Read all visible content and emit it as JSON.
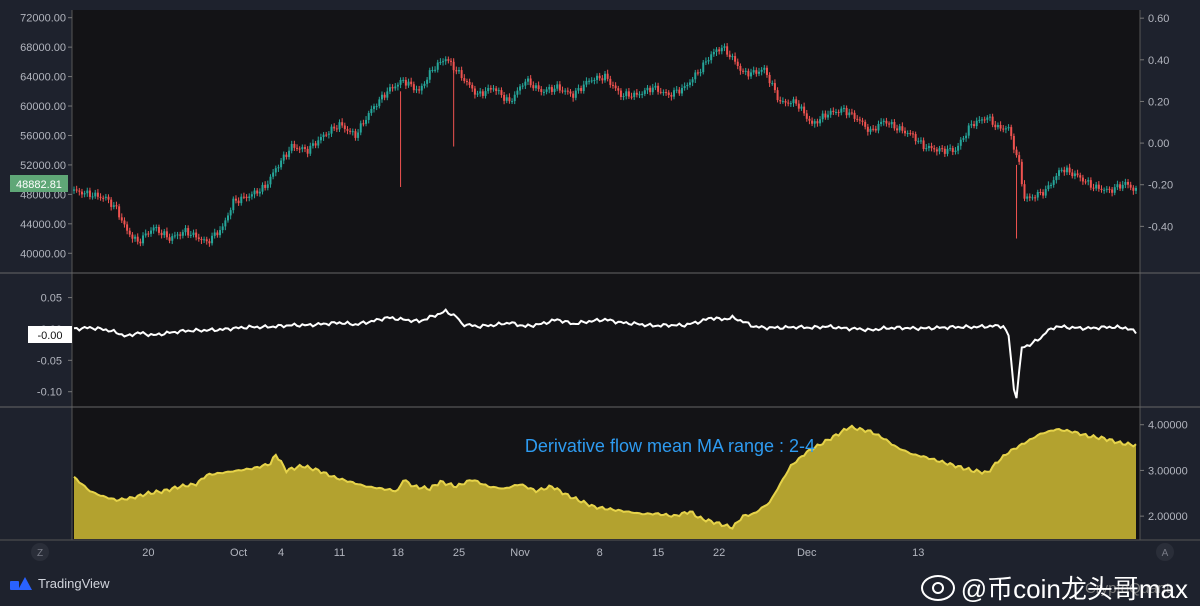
{
  "chart_data": [
    {
      "type": "candlestick",
      "series_name": "",
      "y_axis_left": {
        "ticks": [
          "72000.00",
          "68000.00",
          "64000.00",
          "60000.00",
          "56000.00",
          "52000.00",
          "48000.00",
          "44000.00",
          "40000.00"
        ],
        "range": [
          38000,
          72500
        ]
      },
      "y_axis_right": {
        "ticks": [
          "0.60",
          "0.40",
          "0.20",
          "0.00",
          "-0.20",
          "-0.40"
        ],
        "range": [
          -0.6,
          0.62
        ]
      },
      "price_badge": "48882.81",
      "anchors": [
        [
          0,
          48500
        ],
        [
          6,
          48000
        ],
        [
          12,
          47500
        ],
        [
          16,
          46000
        ],
        [
          20,
          43000
        ],
        [
          24,
          41500
        ],
        [
          30,
          43500
        ],
        [
          36,
          42000
        ],
        [
          42,
          43000
        ],
        [
          50,
          41500
        ],
        [
          56,
          43500
        ],
        [
          60,
          47000
        ],
        [
          66,
          47800
        ],
        [
          72,
          49000
        ],
        [
          76,
          51500
        ],
        [
          82,
          54500
        ],
        [
          88,
          54000
        ],
        [
          94,
          56000
        ],
        [
          100,
          57500
        ],
        [
          106,
          56000
        ],
        [
          112,
          59500
        ],
        [
          118,
          62000
        ],
        [
          124,
          63500
        ],
        [
          130,
          62000
        ],
        [
          135,
          65000
        ],
        [
          140,
          66500
        ],
        [
          146,
          64000
        ],
        [
          152,
          61500
        ],
        [
          158,
          62500
        ],
        [
          164,
          60500
        ],
        [
          170,
          63500
        ],
        [
          176,
          62000
        ],
        [
          182,
          62500
        ],
        [
          188,
          61500
        ],
        [
          194,
          63500
        ],
        [
          200,
          64000
        ],
        [
          206,
          61500
        ],
        [
          212,
          61500
        ],
        [
          218,
          62500
        ],
        [
          224,
          61500
        ],
        [
          230,
          62500
        ],
        [
          236,
          65000
        ],
        [
          240,
          67000
        ],
        [
          244,
          68000
        ],
        [
          248,
          66500
        ],
        [
          252,
          64500
        ],
        [
          256,
          64500
        ],
        [
          260,
          65000
        ],
        [
          266,
          60500
        ],
        [
          272,
          60500
        ],
        [
          278,
          57500
        ],
        [
          284,
          59000
        ],
        [
          290,
          59500
        ],
        [
          296,
          58000
        ],
        [
          300,
          56500
        ],
        [
          305,
          58000
        ],
        [
          310,
          57000
        ],
        [
          316,
          56000
        ],
        [
          320,
          54500
        ],
        [
          326,
          54000
        ],
        [
          332,
          54000
        ],
        [
          338,
          57500
        ],
        [
          344,
          58500
        ],
        [
          348,
          57000
        ],
        [
          352,
          57000
        ],
        [
          356,
          52000
        ],
        [
          358,
          47500
        ],
        [
          360,
          47500
        ],
        [
          366,
          48500
        ],
        [
          372,
          51500
        ],
        [
          378,
          50500
        ],
        [
          384,
          49000
        ],
        [
          390,
          48500
        ],
        [
          396,
          49500
        ],
        [
          400,
          48500
        ]
      ]
    },
    {
      "type": "line",
      "series_name": "",
      "y_axis_left": {
        "ticks": [
          "0.05",
          "0.00",
          "-0.05",
          "-0.10"
        ],
        "range": [
          -0.118,
          0.078
        ]
      },
      "value_badge": "-0.00",
      "anchors": [
        [
          0,
          0.0
        ],
        [
          6,
          0.002
        ],
        [
          10,
          0.0
        ],
        [
          14,
          -0.003
        ],
        [
          20,
          -0.012
        ],
        [
          24,
          -0.006
        ],
        [
          30,
          -0.01
        ],
        [
          36,
          -0.006
        ],
        [
          42,
          -0.003
        ],
        [
          50,
          -0.002
        ],
        [
          56,
          -0.001
        ],
        [
          60,
          0.001
        ],
        [
          66,
          0.003
        ],
        [
          72,
          0.003
        ],
        [
          76,
          0.004
        ],
        [
          82,
          0.006
        ],
        [
          88,
          0.006
        ],
        [
          94,
          0.008
        ],
        [
          100,
          0.01
        ],
        [
          106,
          0.007
        ],
        [
          112,
          0.012
        ],
        [
          118,
          0.018
        ],
        [
          124,
          0.015
        ],
        [
          130,
          0.012
        ],
        [
          135,
          0.02
        ],
        [
          140,
          0.028
        ],
        [
          144,
          0.02
        ],
        [
          146,
          0.008
        ],
        [
          152,
          0.004
        ],
        [
          158,
          0.006
        ],
        [
          164,
          0.01
        ],
        [
          170,
          0.004
        ],
        [
          176,
          0.008
        ],
        [
          182,
          0.015
        ],
        [
          188,
          0.008
        ],
        [
          194,
          0.012
        ],
        [
          200,
          0.015
        ],
        [
          206,
          0.01
        ],
        [
          212,
          0.008
        ],
        [
          218,
          0.005
        ],
        [
          224,
          0.006
        ],
        [
          230,
          0.006
        ],
        [
          236,
          0.012
        ],
        [
          240,
          0.018
        ],
        [
          244,
          0.015
        ],
        [
          248,
          0.018
        ],
        [
          252,
          0.012
        ],
        [
          256,
          0.004
        ],
        [
          260,
          0.002
        ],
        [
          266,
          0.002
        ],
        [
          272,
          0.003
        ],
        [
          278,
          0.002
        ],
        [
          284,
          0.004
        ],
        [
          290,
          0.001
        ],
        [
          296,
          0.0
        ],
        [
          300,
          -0.002
        ],
        [
          305,
          0.001
        ],
        [
          310,
          0.002
        ],
        [
          316,
          0.001
        ],
        [
          320,
          0.001
        ],
        [
          326,
          0.002
        ],
        [
          332,
          0.003
        ],
        [
          338,
          0.003
        ],
        [
          344,
          0.004
        ],
        [
          348,
          0.005
        ],
        [
          350,
          0.004
        ],
        [
          352,
          -0.01
        ],
        [
          354,
          -0.095
        ],
        [
          355,
          -0.108
        ],
        [
          357,
          -0.03
        ],
        [
          360,
          -0.025
        ],
        [
          364,
          -0.015
        ],
        [
          366,
          -0.005
        ],
        [
          370,
          0.004
        ],
        [
          376,
          0.002
        ],
        [
          382,
          0.001
        ],
        [
          390,
          0.003
        ],
        [
          396,
          0.002
        ],
        [
          400,
          -0.005
        ]
      ]
    },
    {
      "type": "area",
      "series_name": "",
      "annotation": "Derivative flow mean MA range : 2-4",
      "y_axis_right": {
        "ticks": [
          "4.00000",
          "3.00000",
          "2.00000"
        ],
        "range": [
          1.5,
          4.3
        ]
      },
      "anchors": [
        [
          0,
          2.85
        ],
        [
          6,
          2.55
        ],
        [
          10,
          2.45
        ],
        [
          16,
          2.35
        ],
        [
          22,
          2.4
        ],
        [
          28,
          2.5
        ],
        [
          34,
          2.55
        ],
        [
          40,
          2.65
        ],
        [
          46,
          2.7
        ],
        [
          50,
          2.9
        ],
        [
          56,
          2.95
        ],
        [
          62,
          3.0
        ],
        [
          68,
          3.05
        ],
        [
          74,
          3.15
        ],
        [
          76,
          3.35
        ],
        [
          80,
          3.0
        ],
        [
          86,
          3.1
        ],
        [
          92,
          3.0
        ],
        [
          98,
          2.85
        ],
        [
          104,
          2.75
        ],
        [
          110,
          2.65
        ],
        [
          116,
          2.6
        ],
        [
          122,
          2.55
        ],
        [
          124,
          2.8
        ],
        [
          128,
          2.65
        ],
        [
          134,
          2.6
        ],
        [
          138,
          2.75
        ],
        [
          144,
          2.65
        ],
        [
          150,
          2.8
        ],
        [
          156,
          2.65
        ],
        [
          162,
          2.6
        ],
        [
          168,
          2.7
        ],
        [
          174,
          2.55
        ],
        [
          180,
          2.65
        ],
        [
          186,
          2.45
        ],
        [
          190,
          2.35
        ],
        [
          196,
          2.2
        ],
        [
          202,
          2.15
        ],
        [
          208,
          2.1
        ],
        [
          214,
          2.05
        ],
        [
          220,
          2.05
        ],
        [
          226,
          2.0
        ],
        [
          232,
          2.1
        ],
        [
          236,
          1.95
        ],
        [
          242,
          1.85
        ],
        [
          248,
          1.75
        ],
        [
          252,
          2.0
        ],
        [
          256,
          2.05
        ],
        [
          262,
          2.3
        ],
        [
          266,
          2.7
        ],
        [
          270,
          3.1
        ],
        [
          276,
          3.4
        ],
        [
          282,
          3.6
        ],
        [
          288,
          3.8
        ],
        [
          292,
          3.95
        ],
        [
          296,
          3.9
        ],
        [
          300,
          3.85
        ],
        [
          305,
          3.7
        ],
        [
          310,
          3.5
        ],
        [
          316,
          3.35
        ],
        [
          320,
          3.3
        ],
        [
          326,
          3.2
        ],
        [
          332,
          3.1
        ],
        [
          338,
          3.0
        ],
        [
          344,
          2.95
        ],
        [
          348,
          3.2
        ],
        [
          352,
          3.4
        ],
        [
          358,
          3.6
        ],
        [
          364,
          3.8
        ],
        [
          370,
          3.9
        ],
        [
          376,
          3.85
        ],
        [
          382,
          3.75
        ],
        [
          388,
          3.7
        ],
        [
          394,
          3.6
        ],
        [
          400,
          3.55
        ]
      ]
    }
  ],
  "x_axis": {
    "labels": [
      {
        "text": "20",
        "x": 28
      },
      {
        "text": "Oct",
        "x": 62
      },
      {
        "text": "4",
        "x": 78
      },
      {
        "text": "11",
        "x": 100
      },
      {
        "text": "18",
        "x": 122
      },
      {
        "text": "25",
        "x": 145
      },
      {
        "text": "Nov",
        "x": 168
      },
      {
        "text": "8",
        "x": 198
      },
      {
        "text": "15",
        "x": 220
      },
      {
        "text": "22",
        "x": 243
      },
      {
        "text": "Dec",
        "x": 276
      },
      {
        "text": "13",
        "x": 318
      }
    ]
  },
  "left_corner_icon": "Z",
  "right_corner_icon": "A",
  "footer": {
    "brand": "TradingView"
  },
  "watermarks": {
    "weibo": "@币coin龙头哥max",
    "cryptoquant": "CryptoQuant"
  },
  "colors": {
    "up": "#26a69a",
    "down": "#ef5350",
    "line": "#ffffff",
    "area_fill": "#b3a22f",
    "area_stroke": "#e6d34a",
    "annotation": "#2e9bf0",
    "price_badge": "#5fa777"
  }
}
